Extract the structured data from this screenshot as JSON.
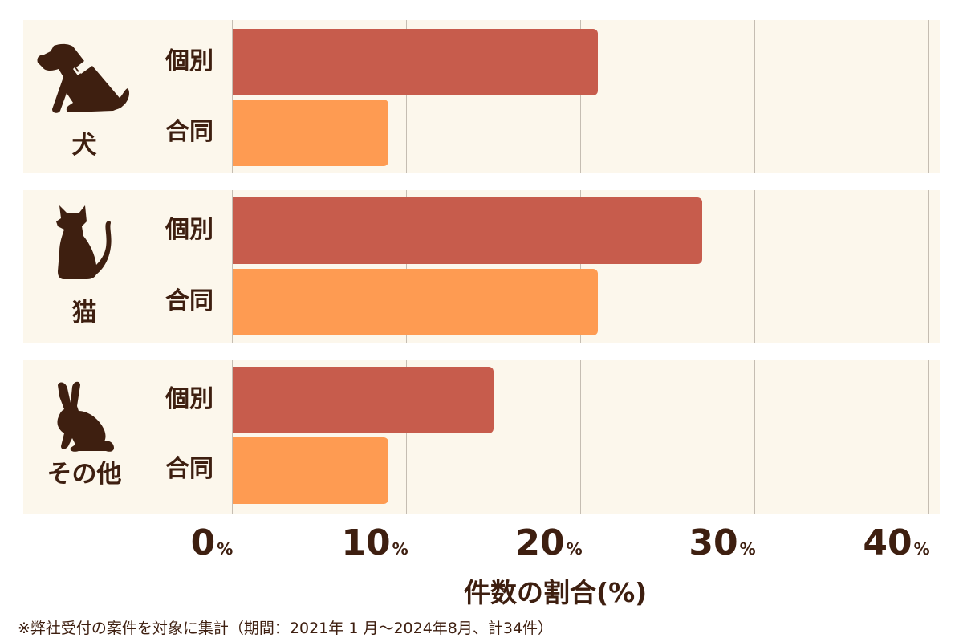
{
  "colors": {
    "individual": "#c75c4c",
    "joint": "#fe9b52",
    "panel_bg": "#fcf7ec",
    "text": "#3e1f10",
    "grid": "#c5bdb2"
  },
  "groups": [
    {
      "label": "犬",
      "icon": "dog-icon",
      "bars": [
        {
          "label": "個別",
          "value": 21
        },
        {
          "label": "合同",
          "value": 9
        }
      ]
    },
    {
      "label": "猫",
      "icon": "cat-icon",
      "bars": [
        {
          "label": "個別",
          "value": 27
        },
        {
          "label": "合同",
          "value": 21
        }
      ]
    },
    {
      "label": "その他",
      "icon": "rabbit-icon",
      "bars": [
        {
          "label": "個別",
          "value": 15
        },
        {
          "label": "合同",
          "value": 9
        }
      ]
    }
  ],
  "axis": {
    "ticks": [
      {
        "num": "0",
        "unit": "%"
      },
      {
        "num": "10",
        "unit": "%"
      },
      {
        "num": "20",
        "unit": "%"
      },
      {
        "num": "30",
        "unit": "%"
      },
      {
        "num": "40",
        "unit": "%"
      }
    ],
    "xlabel": "件数の割合(%)"
  },
  "footnote": "※弊社受付の案件を対象に集計（期間：2021年 1 月～2024年8月、計34件）",
  "chart_data": {
    "type": "bar",
    "orientation": "horizontal",
    "categories": [
      "犬",
      "猫",
      "その他"
    ],
    "series": [
      {
        "name": "個別",
        "color": "#c75c4c",
        "values": [
          21,
          27,
          15
        ]
      },
      {
        "name": "合同",
        "color": "#fe9b52",
        "values": [
          9,
          21,
          9
        ]
      }
    ],
    "title": "",
    "xlabel": "件数の割合(%)",
    "ylabel": "",
    "xlim": [
      0,
      40
    ],
    "xticks": [
      "0%",
      "10%",
      "20%",
      "30%",
      "40%"
    ],
    "grid": true,
    "legend": "none (series labels shown next to each bar)",
    "note": "※弊社受付の案件を対象に集計（期間：2021年 1 月～2024年8月、計34件）"
  }
}
